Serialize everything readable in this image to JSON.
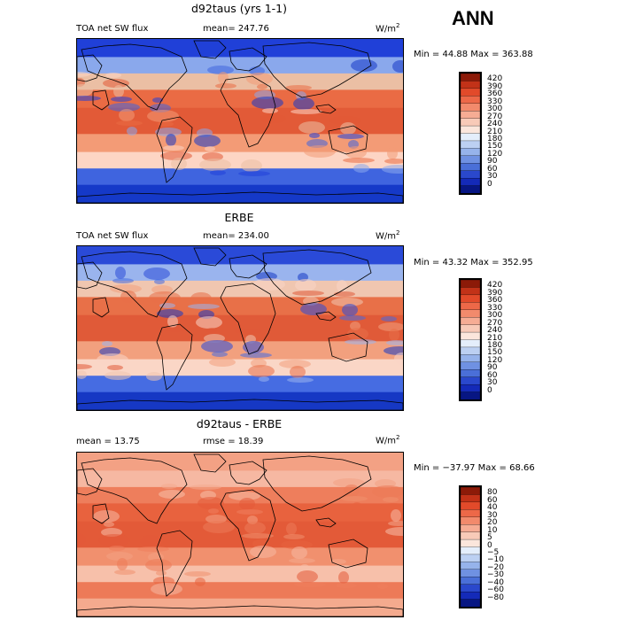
{
  "season": "ANN",
  "panels": [
    {
      "title": "d92taus (yrs 1-1)",
      "left_text": "TOA net SW flux",
      "mid_text": "mean= 247.76",
      "units_base": "W/m",
      "units_exp": "2",
      "minmax": "Min =  44.88 Max = 363.88",
      "fill_colors": [
        "#2040d8",
        "#8aa8ec",
        "#ebbfa4",
        "#ea6b44",
        "#e25a37",
        "#f39b76",
        "#fdd5c4",
        "#3f64df",
        "#1539c8"
      ],
      "colorbar": {
        "labels": [
          "420",
          "390",
          "360",
          "330",
          "300",
          "270",
          "240",
          "210",
          "180",
          "150",
          "120",
          "90",
          "60",
          "30",
          "0"
        ],
        "colors": [
          "#8c1a08",
          "#c23218",
          "#e24a2a",
          "#ed6848",
          "#f28a6c",
          "#f6ac94",
          "#f8cab8",
          "#fbe6dc",
          "#e4eefb",
          "#bcd0f2",
          "#96b3eb",
          "#6f91e2",
          "#4a6fd8",
          "#2a48cc",
          "#142ab8",
          "#071683"
        ]
      }
    },
    {
      "title": "ERBE",
      "left_text": "TOA net SW flux",
      "mid_text": "mean= 234.00",
      "units_base": "W/m",
      "units_exp": "2",
      "minmax": "Min =  43.32 Max = 352.95",
      "fill_colors": [
        "#2a4ad8",
        "#9ab4ee",
        "#f0c6b0",
        "#e87048",
        "#e05a38",
        "#f2a07e",
        "#fad6c6",
        "#466ce2",
        "#1638c4"
      ],
      "colorbar": {
        "labels": [
          "420",
          "390",
          "360",
          "330",
          "300",
          "270",
          "240",
          "210",
          "180",
          "150",
          "120",
          "90",
          "60",
          "30",
          "0"
        ],
        "colors": [
          "#8c1a08",
          "#c23218",
          "#e24a2a",
          "#ed6848",
          "#f28a6c",
          "#f6ac94",
          "#f8cab8",
          "#fbe6dc",
          "#e4eefb",
          "#bcd0f2",
          "#96b3eb",
          "#6f91e2",
          "#4a6fd8",
          "#2a48cc",
          "#142ab8",
          "#071683"
        ]
      }
    },
    {
      "title": "d92taus - ERBE",
      "left_text": "mean =  13.75",
      "mid_text": "rmse =  18.39",
      "units_base": "W/m",
      "units_exp": "2",
      "minmax": "Min = −37.97 Max =  68.66",
      "fill_colors": [
        "#f3a184",
        "#f6b8a2",
        "#ee7e5c",
        "#e8623e",
        "#e35a38",
        "#f1906e",
        "#f7c0aa",
        "#ed7a58",
        "#f4aa8e"
      ],
      "colorbar": {
        "labels": [
          "80",
          "60",
          "40",
          "30",
          "20",
          "10",
          "5",
          "0",
          "−5",
          "−10",
          "−20",
          "−30",
          "−40",
          "−60",
          "−80"
        ],
        "colors": [
          "#8c1a08",
          "#c23218",
          "#e24a2a",
          "#ed6848",
          "#f28a6c",
          "#f6ac94",
          "#f8cab8",
          "#fbe6dc",
          "#e4eefb",
          "#bcd0f2",
          "#96b3eb",
          "#6f91e2",
          "#4a6fd8",
          "#2a48cc",
          "#142ab8",
          "#071683"
        ]
      }
    }
  ]
}
